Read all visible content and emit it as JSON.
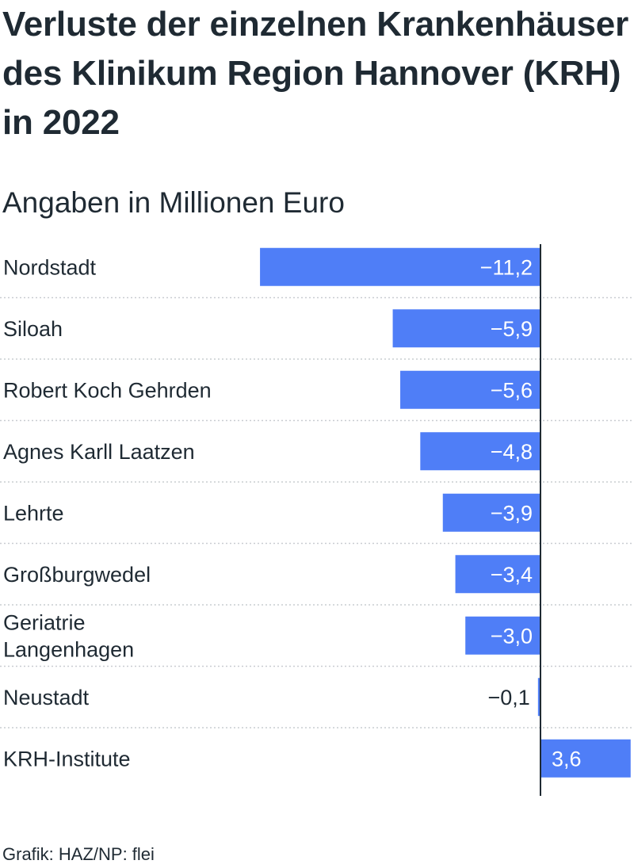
{
  "title": "Verluste der einzelnen Krankenhäuser des Klinikum Region Hannover (KRH) in 2022",
  "subtitle": "Angaben in Millionen Euro",
  "source": "Grafik: HAZ/NP: flei",
  "colors": {
    "bar": "#4f7ef7",
    "text": "#1f2a33",
    "axis": "#1f2a33",
    "divider": "#c9cdd1"
  },
  "chart_data": {
    "type": "bar",
    "orientation": "horizontal",
    "categories": [
      [
        "Nordstadt"
      ],
      [
        "Siloah"
      ],
      [
        "Robert Koch Gehrden"
      ],
      [
        "Agnes Karll Laatzen"
      ],
      [
        "Lehrte"
      ],
      [
        "Großburgwedel"
      ],
      [
        "Geriatrie",
        "Langenhagen"
      ],
      [
        "Neustadt"
      ],
      [
        "KRH-Institute"
      ]
    ],
    "values": [
      -11.2,
      -5.9,
      -5.6,
      -4.8,
      -3.9,
      -3.4,
      -3.0,
      -0.1,
      3.6
    ],
    "value_labels": [
      "−11,2",
      "−5,9",
      "−5,6",
      "−4,8",
      "−3,9",
      "−3,4",
      "−3,0",
      "−0,1",
      "3,6"
    ],
    "xlim": [
      -11.2,
      3.6
    ],
    "grid": false,
    "legend": "none"
  }
}
